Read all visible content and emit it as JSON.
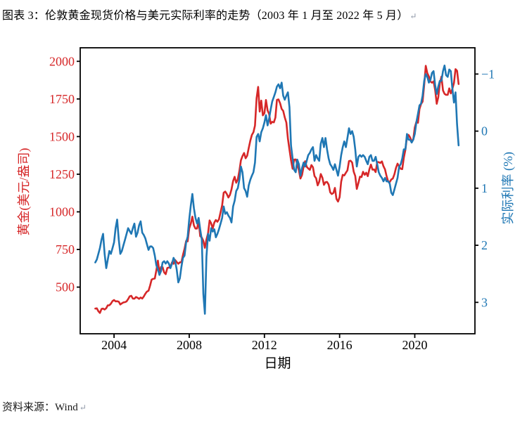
{
  "page": {
    "title": "图表 3：伦敦黄金现货价格与美元实际利率的走势（2003 年 1 月至 2022 年 5 月）",
    "title_paragraph_mark": "↵",
    "source": "资料来源：Wind",
    "source_paragraph_mark": "↵"
  },
  "chart_data": {
    "type": "line",
    "title": "",
    "xlabel": "日期",
    "grid": false,
    "legend": "none",
    "xlim": [
      2002.2,
      2023.2
    ],
    "x_ticks": [
      2004,
      2008,
      2012,
      2016,
      2020
    ],
    "x_start": 2003.0,
    "x_step_years": 0.083333,
    "left_axis": {
      "label": "黄金(美元/盎司)",
      "color": "#d62728",
      "ticks": [
        2000,
        1750,
        1500,
        1250,
        1000,
        750,
        500
      ],
      "lim": [
        190,
        2090
      ]
    },
    "right_axis": {
      "label": "实际利率 (%)",
      "color": "#1f77b4",
      "ticks": [
        -1,
        0,
        1,
        2,
        3
      ],
      "lim_top": -1.46,
      "lim_bottom": 3.55,
      "inverted": true
    },
    "series": [
      {
        "name": "伦敦黄金现货价格",
        "axis": "left",
        "color": "#d62728",
        "values": [
          357,
          359,
          340,
          328,
          355,
          357,
          351,
          360,
          379,
          379,
          390,
          407,
          414,
          405,
          406,
          403,
          384,
          392,
          398,
          400,
          405,
          420,
          439,
          442,
          424,
          423,
          434,
          429,
          422,
          431,
          424,
          438,
          456,
          470,
          476,
          510,
          550,
          555,
          557,
          611,
          676,
          596,
          634,
          632,
          598,
          586,
          627,
          630,
          631,
          665,
          655,
          680,
          667,
          655,
          665,
          665,
          713,
          755,
          806,
          804,
          890,
          922,
          968,
          910,
          889,
          889,
          940,
          839,
          829,
          807,
          761,
          816,
          858,
          943,
          924,
          890,
          929,
          946,
          934,
          950,
          997,
          1043,
          1127,
          1135,
          1118,
          1095,
          1113,
          1149,
          1205,
          1233,
          1193,
          1216,
          1271,
          1342,
          1370,
          1391,
          1356,
          1373,
          1424,
          1474,
          1511,
          1529,
          1573,
          1756,
          1830,
          1666,
          1739,
          1641,
          1656,
          1743,
          1674,
          1650,
          1586,
          1598,
          1594,
          1626,
          1744,
          1747,
          1721,
          1684,
          1671,
          1628,
          1593,
          1487,
          1414,
          1343,
          1286,
          1347,
          1348,
          1316,
          1276,
          1221,
          1244,
          1301,
          1336,
          1299,
          1288,
          1279,
          1311,
          1296,
          1238,
          1223,
          1176,
          1200,
          1251,
          1227,
          1179,
          1197,
          1199,
          1181,
          1130,
          1118,
          1125,
          1159,
          1086,
          1068,
          1098,
          1200,
          1246,
          1242,
          1260,
          1276,
          1337,
          1340,
          1327,
          1267,
          1238,
          1152,
          1192,
          1234,
          1231,
          1266,
          1246,
          1260,
          1237,
          1283,
          1314,
          1280,
          1282,
          1264,
          1331,
          1330,
          1325,
          1335,
          1303,
          1282,
          1238,
          1201,
          1198,
          1215,
          1221,
          1250,
          1292,
          1320,
          1301,
          1286,
          1284,
          1359,
          1413,
          1500,
          1511,
          1495,
          1471,
          1479,
          1561,
          1597,
          1592,
          1683,
          1716,
          1732,
          1843,
          1970,
          1922,
          1900,
          1866,
          1858,
          1867,
          1808,
          1718,
          1762,
          1853,
          1898,
          1807,
          1784,
          1777,
          1777,
          1820,
          1787,
          1817,
          1856,
          1948,
          1937,
          1849
        ]
      },
      {
        "name": "美元实际利率",
        "axis": "right",
        "color": "#1f77b4",
        "values": [
          2.3,
          2.25,
          2.15,
          2.05,
          1.9,
          1.8,
          2.15,
          2.4,
          2.25,
          2.1,
          2.15,
          2.05,
          1.95,
          1.7,
          1.55,
          1.9,
          2.15,
          2.1,
          2.0,
          1.9,
          1.8,
          1.7,
          1.75,
          1.8,
          1.7,
          1.62,
          1.85,
          1.78,
          1.65,
          1.58,
          1.78,
          1.82,
          1.88,
          1.98,
          2.08,
          2.02,
          2.02,
          2.05,
          2.18,
          2.35,
          2.42,
          2.52,
          2.45,
          2.3,
          2.28,
          2.32,
          2.28,
          2.32,
          2.4,
          2.32,
          2.22,
          2.28,
          2.42,
          2.65,
          2.58,
          2.38,
          2.22,
          2.18,
          1.95,
          1.85,
          1.55,
          1.3,
          1.1,
          1.35,
          1.52,
          1.62,
          1.52,
          1.72,
          1.9,
          2.85,
          3.2,
          2.2,
          1.8,
          1.92,
          1.7,
          1.76,
          1.72,
          1.86,
          1.8,
          1.72,
          1.62,
          1.52,
          1.32,
          1.45,
          1.42,
          1.48,
          1.52,
          1.6,
          1.32,
          1.22,
          1.05,
          1.0,
          0.85,
          0.62,
          0.72,
          1.0,
          1.05,
          1.15,
          0.95,
          0.85,
          0.78,
          0.72,
          0.55,
          0.1,
          0.05,
          0.18,
          0.02,
          -0.05,
          -0.15,
          -0.28,
          -0.1,
          -0.22,
          -0.38,
          -0.52,
          -0.6,
          -0.68,
          -0.78,
          -0.82,
          -0.75,
          -0.85,
          -0.62,
          -0.55,
          -0.62,
          -0.68,
          -0.42,
          0.25,
          0.48,
          0.68,
          0.72,
          0.5,
          0.58,
          0.78,
          0.65,
          0.55,
          0.62,
          0.52,
          0.42,
          0.38,
          0.32,
          0.28,
          0.52,
          0.42,
          0.48,
          0.52,
          0.22,
          0.12,
          0.28,
          0.12,
          0.32,
          0.48,
          0.58,
          0.62,
          0.68,
          0.58,
          0.68,
          0.78,
          0.62,
          0.42,
          0.28,
          0.18,
          0.28,
          0.12,
          -0.05,
          0.05,
          0.0,
          0.1,
          0.32,
          0.62,
          0.45,
          0.42,
          0.45,
          0.42,
          0.45,
          0.52,
          0.58,
          0.45,
          0.42,
          0.52,
          0.52,
          0.45,
          0.58,
          0.72,
          0.78,
          0.82,
          0.88,
          0.82,
          0.88,
          0.88,
          0.92,
          1.08,
          1.12,
          1.02,
          0.92,
          0.82,
          0.62,
          0.58,
          0.48,
          0.32,
          0.32,
          0.05,
          0.15,
          0.15,
          0.2,
          0.15,
          0.05,
          -0.15,
          -0.3,
          -0.45,
          -0.48,
          -0.62,
          -0.88,
          -1.0,
          -0.95,
          -0.85,
          -0.9,
          -1.02,
          -1.05,
          -0.8,
          -0.65,
          -0.78,
          -0.88,
          -0.88,
          -1.05,
          -1.15,
          -0.98,
          -0.95,
          -1.08,
          -1.05,
          -0.75,
          -0.5,
          -0.68,
          -0.12,
          0.25
        ]
      }
    ]
  }
}
